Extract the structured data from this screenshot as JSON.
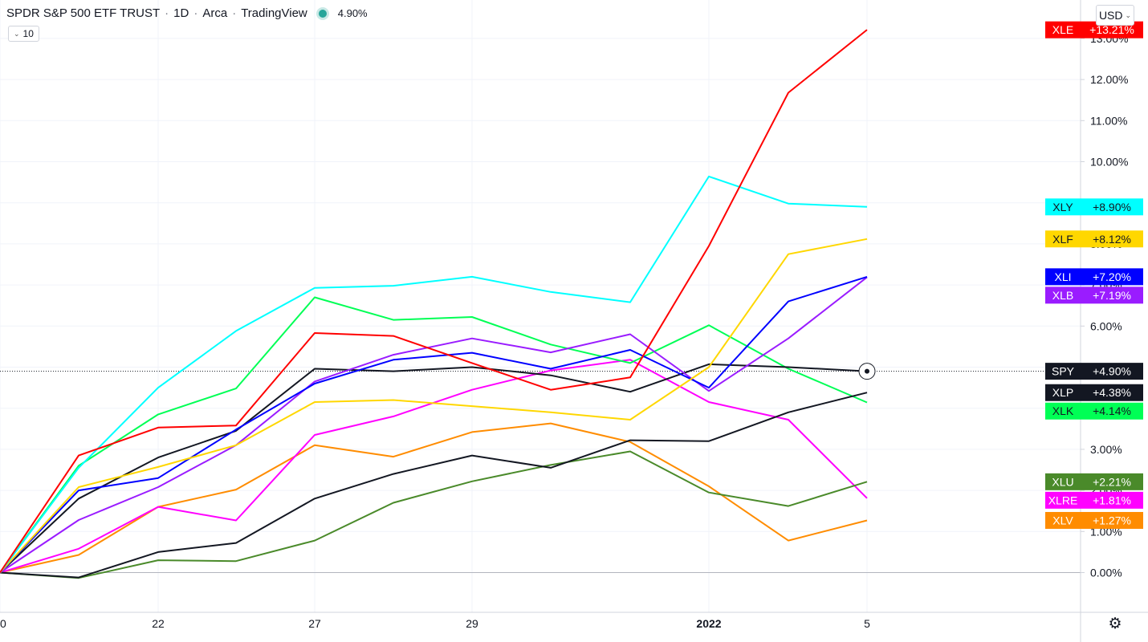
{
  "header": {
    "title": "SPDR S&P 500 ETF TRUST",
    "interval": "1D",
    "exchange": "Arca",
    "source": "TradingView",
    "value": "4.90%",
    "indicator_label": "10",
    "currency": "USD",
    "dot_color": "#26a69a"
  },
  "settings_icon": "gear-icon",
  "chart_data": {
    "type": "line",
    "x_labels": [
      "0",
      "22",
      "27",
      "29",
      "2022",
      "5"
    ],
    "y_ticks": [
      "0.00%",
      "1.00%",
      "2.00%",
      "3.00%",
      "4.00%",
      "5.00%",
      "6.00%",
      "7.00%",
      "8.00%",
      "9.00%",
      "10.00%",
      "11.00%",
      "12.00%",
      "13.00%"
    ],
    "ylim": [
      -1.3,
      13.8
    ],
    "reference_line": 4.9,
    "series": [
      {
        "name": "XLE",
        "color": "#ff0000",
        "label_text": "#ffffff",
        "change": "+13.21%",
        "values": [
          0,
          2.85,
          3.53,
          3.58,
          5.83,
          5.76,
          5.1,
          4.45,
          4.75,
          7.95,
          11.68,
          13.21
        ]
      },
      {
        "name": "XLY",
        "color": "#00ffff",
        "label_text": "#131722",
        "change": "+8.90%",
        "values": [
          0,
          2.55,
          4.5,
          5.88,
          6.93,
          6.98,
          7.2,
          6.83,
          6.58,
          9.64,
          8.98,
          8.9
        ]
      },
      {
        "name": "XLF",
        "color": "#ffd700",
        "label_text": "#131722",
        "change": "+8.12%",
        "values": [
          0,
          2.08,
          2.57,
          3.1,
          4.15,
          4.2,
          4.05,
          3.9,
          3.72,
          5.0,
          7.75,
          8.12
        ]
      },
      {
        "name": "XLI",
        "color": "#0000ff",
        "label_text": "#ffffff",
        "change": "+7.20%",
        "values": [
          0,
          2.0,
          2.3,
          3.48,
          4.6,
          5.18,
          5.35,
          4.96,
          5.42,
          4.5,
          6.6,
          7.2
        ]
      },
      {
        "name": "XLB",
        "color": "#9a1cff",
        "label_text": "#ffffff",
        "change": "+7.19%",
        "values": [
          0,
          1.28,
          2.08,
          3.1,
          4.65,
          5.3,
          5.7,
          5.36,
          5.8,
          4.42,
          5.7,
          7.19
        ]
      },
      {
        "name": "SPY",
        "color": "#131722",
        "label_text": "#ffffff",
        "change": "+4.90%",
        "values": [
          0,
          1.8,
          2.8,
          3.45,
          4.96,
          4.9,
          5.0,
          4.8,
          4.4,
          5.07,
          5.0,
          4.9
        ]
      },
      {
        "name": "XLP",
        "color": "#131722",
        "label_text": "#ffffff",
        "change": "+4.38%",
        "values": [
          0,
          -0.12,
          0.5,
          0.72,
          1.8,
          2.4,
          2.85,
          2.55,
          3.22,
          3.2,
          3.9,
          4.38
        ]
      },
      {
        "name": "XLK",
        "color": "#00ff55",
        "label_text": "#131722",
        "change": "+4.14%",
        "values": [
          0,
          2.6,
          3.85,
          4.48,
          6.7,
          6.15,
          6.22,
          5.55,
          5.1,
          6.02,
          4.96,
          4.14
        ]
      },
      {
        "name": "XLU",
        "color": "#4a8a2a",
        "label_text": "#ffffff",
        "change": "+2.21%",
        "values": [
          0,
          -0.13,
          0.3,
          0.28,
          0.78,
          1.7,
          2.22,
          2.62,
          2.95,
          1.95,
          1.62,
          2.21
        ]
      },
      {
        "name": "XLRE",
        "color": "#ff00ff",
        "label_text": "#ffffff",
        "change": "+1.81%",
        "values": [
          0,
          0.58,
          1.6,
          1.27,
          3.35,
          3.8,
          4.45,
          4.92,
          5.18,
          4.15,
          3.72,
          1.81
        ]
      },
      {
        "name": "XLV",
        "color": "#ff8c00",
        "label_text": "#ffffff",
        "change": "+1.27%",
        "values": [
          0,
          0.43,
          1.6,
          2.02,
          3.1,
          2.82,
          3.42,
          3.63,
          3.18,
          2.1,
          0.78,
          1.27
        ]
      }
    ]
  }
}
